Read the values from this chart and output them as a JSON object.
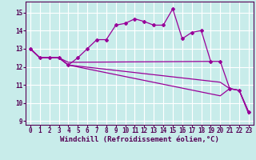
{
  "background_color": "#c8ecea",
  "grid_color": "#ffffff",
  "line_color": "#990099",
  "marker": "D",
  "markersize": 2.0,
  "linewidth": 0.9,
  "xlabel": "Windchill (Refroidissement éolien,°C)",
  "xlabel_fontsize": 6.5,
  "tick_fontsize": 5.5,
  "xlim": [
    -0.5,
    23.5
  ],
  "ylim": [
    8.8,
    15.6
  ],
  "yticks": [
    9,
    10,
    11,
    12,
    13,
    14,
    15
  ],
  "xticks": [
    0,
    1,
    2,
    3,
    4,
    5,
    6,
    7,
    8,
    9,
    10,
    11,
    12,
    13,
    14,
    15,
    16,
    17,
    18,
    19,
    20,
    21,
    22,
    23
  ],
  "line1_x": [
    0,
    1,
    2,
    3,
    4,
    5,
    6,
    7,
    8,
    9,
    10,
    11,
    12,
    13,
    14,
    15,
    16,
    17,
    18,
    19,
    20,
    21,
    22,
    23
  ],
  "line1_y": [
    13.0,
    12.5,
    12.5,
    12.5,
    12.1,
    12.5,
    13.0,
    13.5,
    13.5,
    14.3,
    14.4,
    14.65,
    14.5,
    14.3,
    14.3,
    15.2,
    13.55,
    13.9,
    14.0,
    12.3,
    12.3,
    10.8,
    10.7,
    9.5
  ],
  "line2_x": [
    0,
    1,
    2,
    3,
    4,
    19
  ],
  "line2_y": [
    13.0,
    12.5,
    12.5,
    12.5,
    12.25,
    12.3
  ],
  "line3_x": [
    0,
    1,
    2,
    3,
    4,
    20,
    21,
    22,
    23
  ],
  "line3_y": [
    13.0,
    12.5,
    12.5,
    12.5,
    12.1,
    11.15,
    10.8,
    10.7,
    9.5
  ],
  "line4_x": [
    0,
    1,
    2,
    3,
    4,
    20,
    21,
    22,
    23
  ],
  "line4_y": [
    13.0,
    12.5,
    12.5,
    12.5,
    12.1,
    10.4,
    10.8,
    10.7,
    9.4
  ]
}
